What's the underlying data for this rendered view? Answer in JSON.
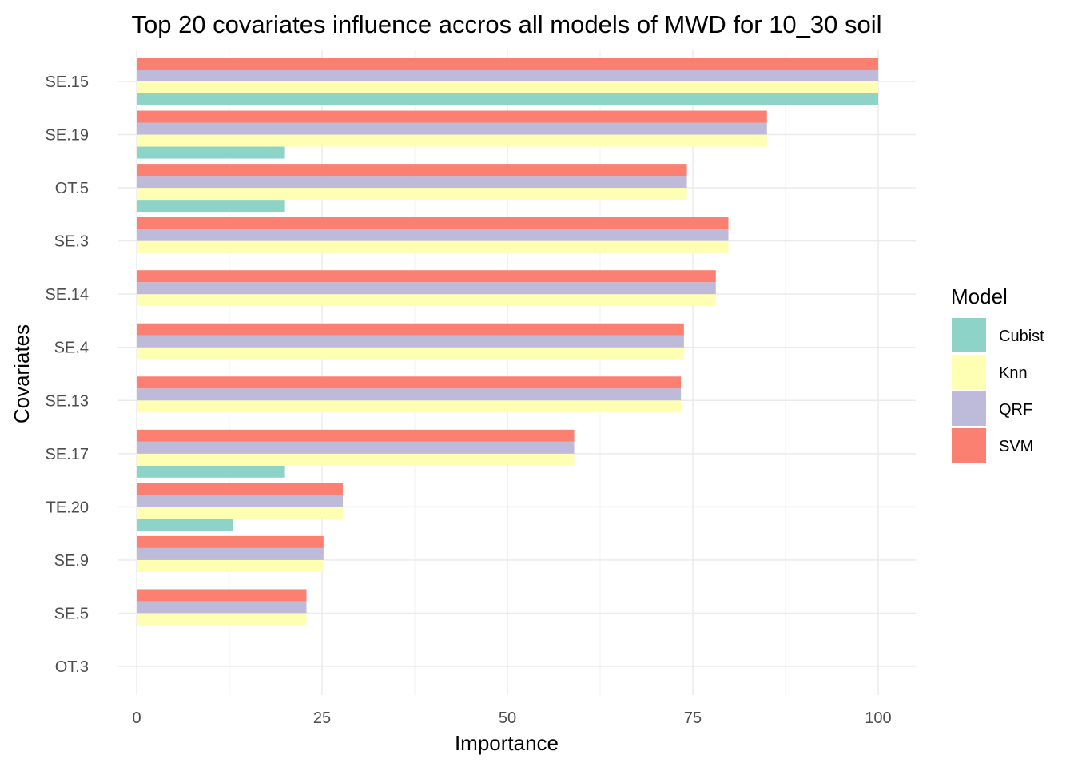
{
  "chart_data": {
    "type": "bar",
    "orientation": "horizontal",
    "title": "Top 20 covariates influence accros all models of MWD for 10_30 soil",
    "xlabel": "Importance",
    "ylabel": "Covariates",
    "xlim": [
      0,
      100
    ],
    "x_ticks": [
      "0",
      "25",
      "50",
      "75",
      "100"
    ],
    "grid": true,
    "legend_position": "right",
    "legend_title": "Model",
    "categories": [
      "SE.15",
      "SE.19",
      "OT.5",
      "SE.3",
      "SE.14",
      "SE.4",
      "SE.13",
      "SE.17",
      "TE.20",
      "SE.9",
      "SE.5",
      "OT.3"
    ],
    "series": [
      {
        "name": "Cubist",
        "color": "#8DD3C7",
        "values": [
          100,
          20,
          20,
          null,
          null,
          null,
          null,
          20,
          13,
          null,
          null,
          null
        ]
      },
      {
        "name": "Knn",
        "color": "#FFFFB3",
        "values": [
          100,
          85,
          74.2,
          79.8,
          78.1,
          73.8,
          73.4,
          59,
          27.8,
          25.2,
          22.9,
          null
        ]
      },
      {
        "name": "QRF",
        "color": "#BEBADA",
        "values": [
          100,
          85,
          74.2,
          79.8,
          78.1,
          73.8,
          73.4,
          59,
          27.8,
          25.2,
          22.9,
          null
        ]
      },
      {
        "name": "SVM",
        "color": "#FB8072",
        "values": [
          100,
          85,
          74.2,
          79.8,
          78.1,
          73.8,
          73.4,
          59,
          27.8,
          25.2,
          22.9,
          null
        ]
      }
    ]
  }
}
